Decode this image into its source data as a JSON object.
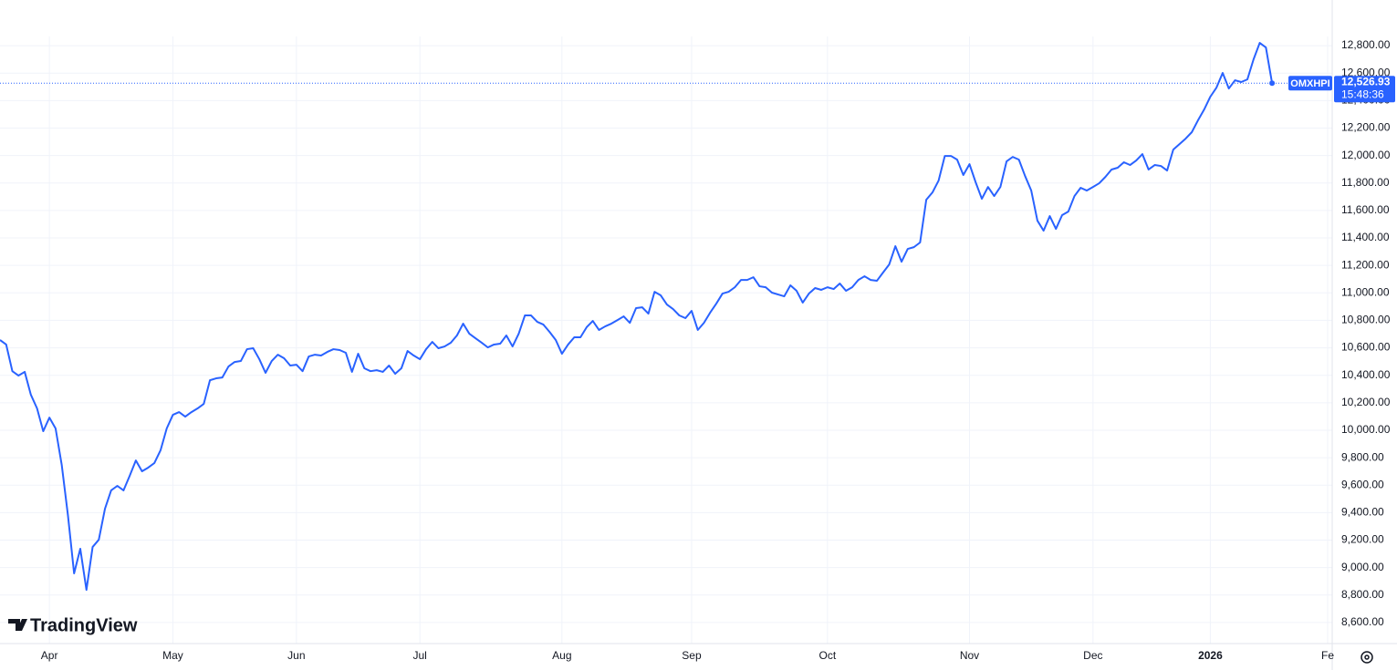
{
  "chart_data": {
    "type": "line",
    "watermark": "TradingView",
    "categories": [
      null,
      null,
      null,
      null,
      null,
      null,
      null,
      null,
      "Apr",
      null,
      null,
      null,
      null,
      null,
      null,
      null,
      null,
      null,
      null,
      null,
      null,
      null,
      null,
      null,
      null,
      null,
      null,
      null,
      "May",
      null,
      null,
      null,
      null,
      null,
      null,
      null,
      null,
      null,
      null,
      null,
      null,
      null,
      null,
      null,
      null,
      null,
      null,
      null,
      "Jun",
      null,
      null,
      null,
      null,
      null,
      null,
      null,
      null,
      null,
      null,
      null,
      null,
      null,
      null,
      null,
      null,
      null,
      null,
      null,
      "Jul",
      null,
      null,
      null,
      null,
      null,
      null,
      null,
      null,
      null,
      null,
      null,
      null,
      null,
      null,
      null,
      null,
      null,
      null,
      null,
      null,
      null,
      null,
      "Aug",
      null,
      null,
      null,
      null,
      null,
      null,
      null,
      null,
      null,
      null,
      null,
      null,
      null,
      null,
      null,
      null,
      null,
      null,
      null,
      null,
      "Sep",
      null,
      null,
      null,
      null,
      null,
      null,
      null,
      null,
      null,
      null,
      null,
      null,
      null,
      null,
      null,
      null,
      null,
      null,
      null,
      null,
      null,
      "Oct",
      null,
      null,
      null,
      null,
      null,
      null,
      null,
      null,
      null,
      null,
      null,
      null,
      null,
      null,
      null,
      null,
      null,
      null,
      null,
      null,
      null,
      null,
      "Nov",
      null,
      null,
      null,
      null,
      null,
      null,
      null,
      null,
      null,
      null,
      null,
      null,
      null,
      null,
      null,
      null,
      null,
      null,
      null,
      "Dec",
      null,
      null,
      null,
      null,
      null,
      null,
      null,
      null,
      null,
      null,
      null,
      null,
      null,
      null,
      null,
      null,
      null,
      null,
      "2026",
      null,
      null,
      null,
      null,
      null,
      null,
      null,
      null,
      null,
      null,
      null,
      null,
      null,
      null,
      null,
      null,
      null,
      null,
      "Fe"
    ],
    "series": [
      {
        "name": "OMXHPI",
        "color": "#2962ff",
        "values": [
          10657,
          10624,
          10430,
          10398,
          10425,
          10258,
          10159,
          9993,
          10092,
          10013,
          9747,
          9382,
          8958,
          9137,
          8838,
          9150,
          9203,
          9429,
          9562,
          9595,
          9562,
          9668,
          9780,
          9701,
          9728,
          9761,
          9854,
          10013,
          10112,
          10132,
          10099,
          10132,
          10159,
          10192,
          10364,
          10378,
          10384,
          10464,
          10497,
          10504,
          10590,
          10597,
          10517,
          10418,
          10504,
          10550,
          10524,
          10471,
          10477,
          10430,
          10537,
          10550,
          10544,
          10570,
          10590,
          10584,
          10564,
          10425,
          10557,
          10451,
          10430,
          10437,
          10425,
          10471,
          10411,
          10451,
          10577,
          10544,
          10517,
          10590,
          10643,
          10597,
          10610,
          10637,
          10690,
          10776,
          10703,
          10670,
          10637,
          10603,
          10624,
          10630,
          10690,
          10610,
          10703,
          10836,
          10836,
          10789,
          10769,
          10716,
          10657,
          10557,
          10624,
          10677,
          10677,
          10750,
          10796,
          10730,
          10756,
          10776,
          10802,
          10829,
          10782,
          10889,
          10895,
          10849,
          11008,
          10982,
          10915,
          10882,
          10836,
          10816,
          10869,
          10730,
          10782,
          10856,
          10922,
          10995,
          11008,
          11041,
          11094,
          11094,
          11114,
          11048,
          11041,
          11002,
          10988,
          10975,
          11055,
          11015,
          10929,
          10995,
          11035,
          11022,
          11041,
          11028,
          11068,
          11015,
          11041,
          11094,
          11121,
          11094,
          11088,
          11148,
          11207,
          11340,
          11227,
          11320,
          11333,
          11367,
          11678,
          11731,
          11818,
          11997,
          11997,
          11970,
          11858,
          11937,
          11805,
          11685,
          11771,
          11705,
          11771,
          11957,
          11990,
          11970,
          11851,
          11745,
          11526,
          11453,
          11559,
          11466,
          11566,
          11592,
          11705,
          11765,
          11745,
          11771,
          11798,
          11844,
          11898,
          11911,
          11951,
          11931,
          11964,
          12010,
          11898,
          11931,
          11924,
          11891,
          12043,
          12083,
          12123,
          12170,
          12256,
          12335,
          12428,
          12495,
          12601,
          12488,
          12548,
          12535,
          12554,
          12700,
          12820,
          12787,
          12526.93,
          null,
          null,
          null,
          null,
          null,
          null,
          null,
          null,
          null
        ]
      }
    ],
    "last_price_label": "12,526.93",
    "last_time": "15:48:36",
    "ylim": [
      8500,
      12900
    ],
    "yticks": [
      {
        "value": 8600,
        "label": "8,600.00"
      },
      {
        "value": 8800,
        "label": "8,800.00"
      },
      {
        "value": 9000,
        "label": "9,000.00"
      },
      {
        "value": 9200,
        "label": "9,200.00"
      },
      {
        "value": 9400,
        "label": "9,400.00"
      },
      {
        "value": 9600,
        "label": "9,600.00"
      },
      {
        "value": 9800,
        "label": "9,800.00"
      },
      {
        "value": 10000,
        "label": "10,000.00"
      },
      {
        "value": 10200,
        "label": "10,200.00"
      },
      {
        "value": 10400,
        "label": "10,400.00"
      },
      {
        "value": 10600,
        "label": "10,600.00"
      },
      {
        "value": 10800,
        "label": "10,800.00"
      },
      {
        "value": 11000,
        "label": "11,000.00"
      },
      {
        "value": 11200,
        "label": "11,200.00"
      },
      {
        "value": 11400,
        "label": "11,400.00"
      },
      {
        "value": 11600,
        "label": "11,600.00"
      },
      {
        "value": 11800,
        "label": "11,800.00"
      },
      {
        "value": 12000,
        "label": "12,000.00"
      },
      {
        "value": 12200,
        "label": "12,200.00"
      },
      {
        "value": 12400,
        "label": "12,400.00"
      },
      {
        "value": 12600,
        "label": "12,600.00"
      },
      {
        "value": 12800,
        "label": "12,800.00"
      }
    ],
    "grid": true
  }
}
